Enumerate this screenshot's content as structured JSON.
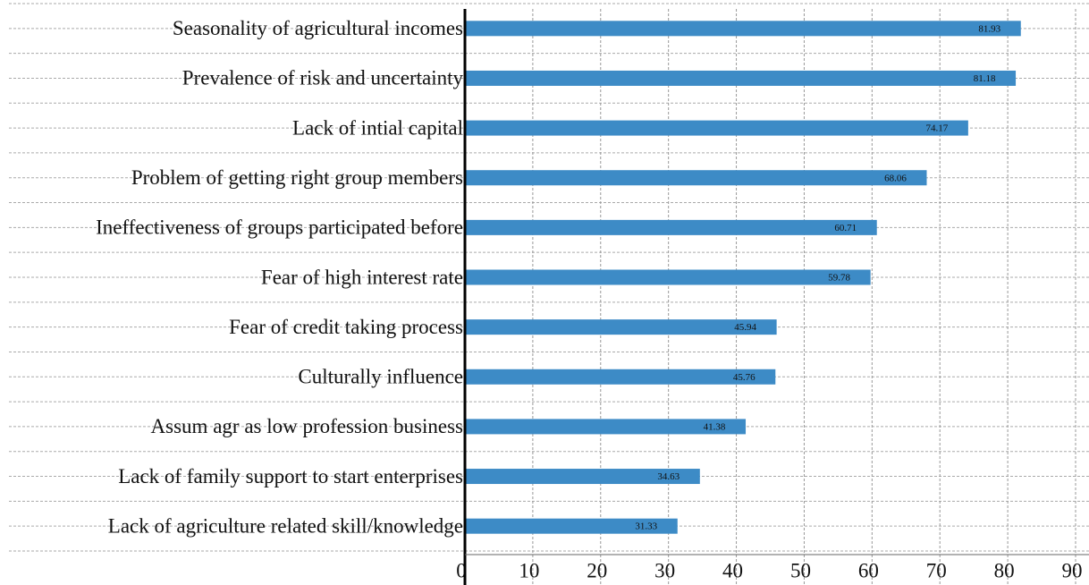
{
  "chart_data": {
    "type": "bar",
    "orientation": "horizontal",
    "categories": [
      "Seasonality of agricultural incomes",
      "Prevalence of risk and uncertainty",
      "Lack of intial capital",
      "Problem of getting right group members",
      "Ineffectiveness of groups participated before",
      "Fear of high interest rate",
      "Fear of credit taking process",
      "Culturally influence",
      "Assum agr as low profession business",
      "Lack of family support to start enterprises",
      "Lack of agriculture related skill/knowledge"
    ],
    "values": [
      81.93,
      81.18,
      74.17,
      68.06,
      60.71,
      59.78,
      45.94,
      45.76,
      41.38,
      34.63,
      31.33
    ],
    "color": "#3d8bc6",
    "xlim": [
      0,
      90
    ],
    "xticks": [
      0,
      10,
      20,
      30,
      40,
      50,
      60,
      70,
      80,
      90
    ],
    "grid": true
  }
}
